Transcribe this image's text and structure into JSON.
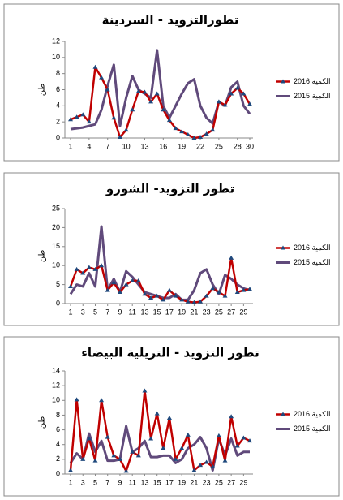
{
  "chart_data": [
    {
      "type": "line",
      "title": "تطورالتزويد - السردينة",
      "y_label": "طن",
      "x": [
        1,
        2,
        3,
        4,
        5,
        6,
        7,
        8,
        9,
        10,
        11,
        12,
        13,
        14,
        15,
        16,
        17,
        18,
        19,
        20,
        21,
        22,
        23,
        24,
        25,
        26,
        27,
        28,
        29,
        30
      ],
      "xlim": [
        1,
        30
      ],
      "xticks": [
        1,
        4,
        7,
        10,
        13,
        16,
        19,
        22,
        25,
        28,
        30
      ],
      "ylim": [
        0,
        12
      ],
      "yticks": [
        0,
        2,
        4,
        6,
        8,
        10,
        12
      ],
      "legend": "right",
      "series": [
        {
          "name": "الكمية 2016",
          "color": "#c00000",
          "marker": "triangle",
          "values": [
            2.3,
            2.6,
            2.9,
            2.0,
            8.8,
            7.5,
            6.0,
            2.5,
            0.1,
            1.0,
            3.5,
            5.8,
            5.7,
            4.5,
            5.5,
            3.5,
            2.2,
            1.2,
            0.8,
            0.4,
            0.0,
            0.1,
            0.5,
            1.0,
            4.5,
            4.1,
            5.5,
            6.2,
            5.5,
            4.2
          ]
        },
        {
          "name": "الكمية 2015",
          "color": "#604a7b",
          "values": [
            1.1,
            1.2,
            1.3,
            1.5,
            1.7,
            3.5,
            6.5,
            9.1,
            1.5,
            5.0,
            7.7,
            6.0,
            5.5,
            5.0,
            10.9,
            4.0,
            2.5,
            4.0,
            5.5,
            6.8,
            7.3,
            4.0,
            2.5,
            1.8,
            4.5,
            4.0,
            6.3,
            7.0,
            4.0,
            3.0
          ]
        }
      ]
    },
    {
      "type": "line",
      "title": "تطور التزويد- الشورو",
      "y_label": "طن",
      "x": [
        1,
        2,
        3,
        4,
        5,
        6,
        7,
        8,
        9,
        10,
        11,
        12,
        13,
        14,
        15,
        16,
        17,
        18,
        19,
        20,
        21,
        22,
        23,
        24,
        25,
        26,
        27,
        28,
        29,
        30
      ],
      "xlim": [
        1,
        30
      ],
      "xticks": [
        1,
        3,
        5,
        7,
        9,
        11,
        13,
        15,
        17,
        19,
        21,
        23,
        25,
        27,
        29
      ],
      "ylim": [
        0,
        25
      ],
      "yticks": [
        0,
        5,
        10,
        15,
        20,
        25
      ],
      "legend": "right",
      "series": [
        {
          "name": "الكمية 2016",
          "color": "#c00000",
          "marker": "triangle",
          "values": [
            4.5,
            9.0,
            8.0,
            9.5,
            9.0,
            10.0,
            3.5,
            5.5,
            3.0,
            5.0,
            6.0,
            6.0,
            2.5,
            1.5,
            2.0,
            1.0,
            3.5,
            2.0,
            1.0,
            0.5,
            0.3,
            0.5,
            2.0,
            4.0,
            3.0,
            2.0,
            12.0,
            3.0,
            3.5,
            3.8
          ]
        },
        {
          "name": "الكمية 2015",
          "color": "#604a7b",
          "values": [
            2.5,
            5.0,
            4.5,
            8.0,
            4.5,
            20.3,
            3.5,
            6.5,
            3.0,
            8.5,
            7.0,
            5.0,
            3.0,
            2.5,
            2.0,
            1.5,
            1.5,
            2.5,
            1.0,
            1.0,
            3.5,
            8.0,
            9.0,
            5.0,
            2.5,
            7.5,
            6.5,
            5.0,
            4.0,
            3.5
          ]
        }
      ]
    },
    {
      "type": "line",
      "title": "تطور التزويد - التريلية البيضاء",
      "y_label": "طن",
      "x": [
        1,
        2,
        3,
        4,
        5,
        6,
        7,
        8,
        9,
        10,
        11,
        12,
        13,
        14,
        15,
        16,
        17,
        18,
        19,
        20,
        21,
        22,
        23,
        24,
        25,
        26,
        27,
        28,
        29,
        30
      ],
      "xlim": [
        1,
        30
      ],
      "xticks": [
        1,
        3,
        5,
        7,
        9,
        11,
        13,
        15,
        17,
        19,
        21,
        23,
        25,
        27,
        29
      ],
      "ylim": [
        0,
        14
      ],
      "yticks": [
        0,
        2,
        4,
        6,
        8,
        10,
        12,
        14
      ],
      "legend": "right",
      "series": [
        {
          "name": "الكمية 2016",
          "color": "#c00000",
          "marker": "triangle",
          "values": [
            0.5,
            10.1,
            2.0,
            4.8,
            1.8,
            10.0,
            5.0,
            2.5,
            2.0,
            0.4,
            3.0,
            2.5,
            11.3,
            4.8,
            8.2,
            3.5,
            7.6,
            2.0,
            3.5,
            5.3,
            0.5,
            1.2,
            1.6,
            1.0,
            5.2,
            1.8,
            7.8,
            3.8,
            4.9,
            4.5
          ]
        },
        {
          "name": "الكمية 2015",
          "color": "#604a7b",
          "values": [
            1.5,
            2.8,
            2.0,
            5.5,
            3.0,
            4.5,
            1.8,
            1.8,
            2.0,
            6.5,
            3.0,
            3.5,
            4.5,
            2.3,
            2.3,
            2.5,
            2.5,
            1.5,
            2.0,
            3.5,
            4.0,
            5.0,
            3.5,
            0.5,
            4.8,
            2.5,
            4.8,
            2.5,
            3.0,
            3.0
          ]
        }
      ]
    }
  ]
}
